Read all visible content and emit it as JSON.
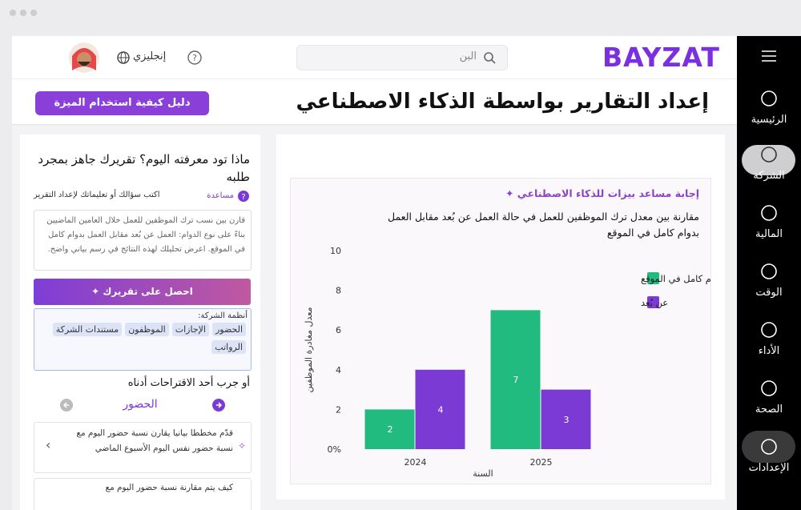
{
  "sidebar": {
    "items": [
      "الرئيسية",
      "الشركة",
      "المالية",
      "الوقت",
      "الأداء",
      "الصحة",
      "الإعدادات"
    ]
  },
  "header": {
    "logo": "BAYZAT",
    "search_placeholder": "البن",
    "language": "إنجليزي"
  },
  "page": {
    "title": "إعداد التقارير بواسطة الذكاء الاصطناعي",
    "guide_button": "دليل كيفية استخدام الميزة"
  },
  "panel": {
    "heading": "ماذا تود معرفته اليوم؟ تقريرك جاهز بمجرد طلبه",
    "prompt_label": "اكتب سؤالك أو تعليماتك لإعداد التقرير",
    "help": "مساعدة",
    "prompt_text": "قارن بين نسب ترك الموظفين للعمل خلال العامين الماضيين بناءً على نوع الدوام: العمل عن بُعد مقابل العمل بدوام كامل في الموقع. اعرض تحليلك لهذه النتائج في رسم بياني واضح.",
    "submit_button": "احصل على تقريرك",
    "systems_label": "أنظمة الشركة:",
    "systems": [
      "الحضور",
      "الإجازات",
      "الموظفون",
      "مستندات الشركة",
      "الرواتب"
    ],
    "suggestions_heading": "أو جرب أحد الاقتراحات أدناه",
    "suggestion_category": "الحضور",
    "suggestions": [
      "قدّم مخططا بيانيا يقارن نسبة حضور اليوم مع نسبة حضور نفس اليوم الأسبوع الماضي",
      "كيف يتم مقارنة نسبة حضور اليوم مع"
    ]
  },
  "answer": {
    "heading": "إجابة مساعد بيزات للذكاء الاصطناعي"
  },
  "chart_data": {
    "type": "bar",
    "title": "مقارنة بين معدل ترك الموظفين للعمل في حالة العمل عن بُعد مقابل العمل بدوام كامل في الموقع",
    "x_label": "السنة",
    "y_label": "معدل مغادرة الموظفين",
    "categories": [
      "2024",
      "2025"
    ],
    "series": [
      {
        "name": "دوام كامل في الموقع",
        "color": "#22bb7f",
        "values": [
          2,
          7
        ]
      },
      {
        "name": "عن بُعد",
        "color": "#7b3ad4",
        "values": [
          4,
          3
        ]
      }
    ],
    "ylim": [
      0,
      10
    ],
    "yticks": [
      {
        "value": 0,
        "label": "0%"
      },
      2,
      4,
      6,
      8,
      10
    ],
    "grid": false
  }
}
